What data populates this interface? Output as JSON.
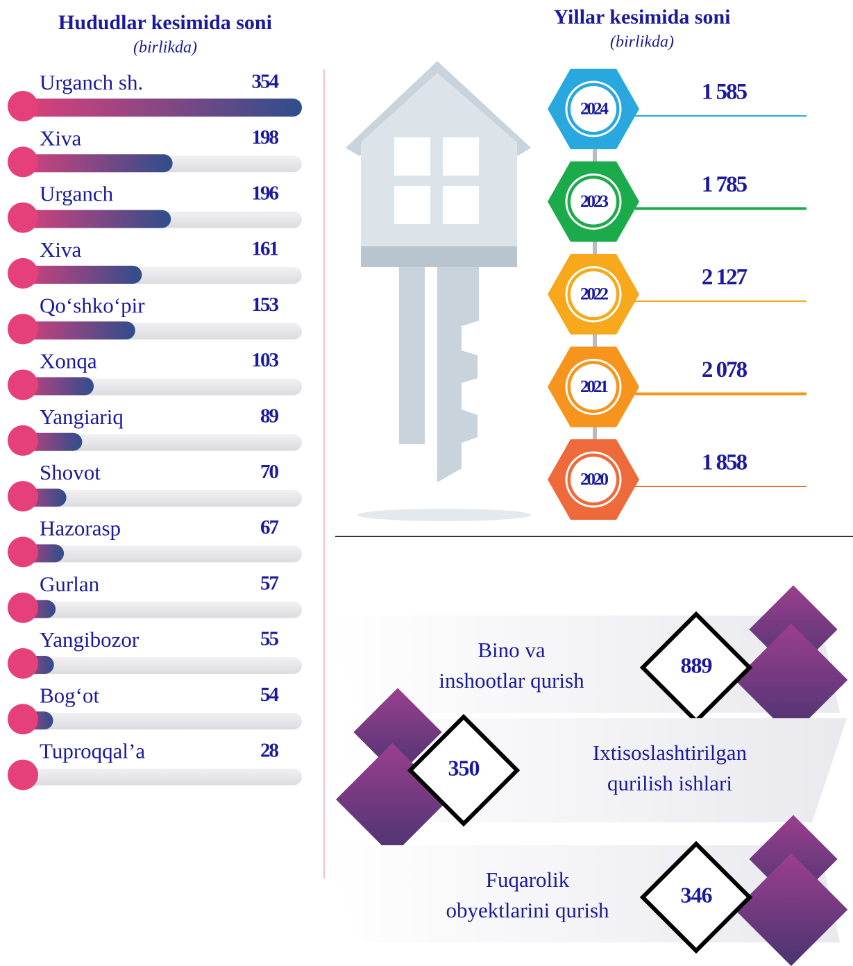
{
  "chart_data": [
    {
      "type": "bar",
      "title": "Hududlar kesimida soni",
      "subtitle": "(birlikda)",
      "categories": [
        "Urganch sh.",
        "Xiva",
        "Urganch",
        "Xiva",
        "Qo‘shko‘pir",
        "Xonqa",
        "Yangiariq",
        "Shovot",
        "Hazorasp",
        "Gurlan",
        "Yangibozor",
        "Bog‘ot",
        "Tuproqqal’a"
      ],
      "values": [
        354,
        198,
        196,
        161,
        153,
        103,
        89,
        70,
        67,
        57,
        55,
        54,
        28
      ]
    },
    {
      "type": "hexagon",
      "title": "Yillar kesimida soni",
      "subtitle": "(birlikda)",
      "categories": [
        "2024",
        "2023",
        "2022",
        "2021",
        "2020"
      ],
      "values": [
        1585,
        1785,
        2127,
        2078,
        1858
      ],
      "value_labels": [
        "1 585",
        "1 785",
        "2 127",
        "2 078",
        "1 858"
      ],
      "colors": [
        "#29a8e0",
        "#1bab4b",
        "#f7a81b",
        "#f7941d",
        "#ef6a3a"
      ]
    },
    {
      "type": "diamond",
      "categories": [
        [
          "Bino va",
          "inshootlar qurish"
        ],
        [
          "Ixtisoslashtirilgan",
          "qurilish ishlari"
        ],
        [
          "Fuqarolik",
          "obyektlarini qurish"
        ]
      ],
      "values": [
        889,
        350,
        346
      ]
    }
  ]
}
